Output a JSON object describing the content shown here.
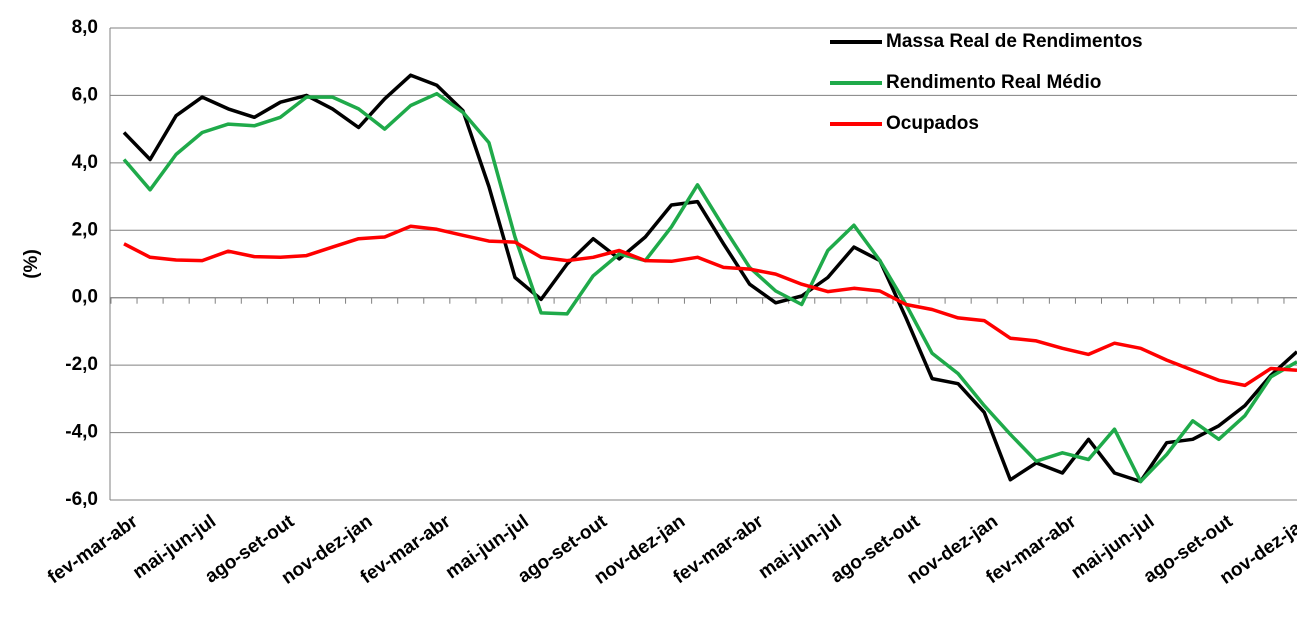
{
  "chart_data": {
    "type": "line",
    "ylabel": "(%)",
    "categories": [
      "fev-mar-abr",
      null,
      null,
      "mai-jun-jul",
      null,
      null,
      "ago-set-out",
      null,
      null,
      "nov-dez-jan",
      null,
      null,
      "fev-mar-abr",
      null,
      null,
      "mai-jun-jul",
      null,
      null,
      "ago-set-out",
      null,
      null,
      "nov-dez-jan",
      null,
      null,
      "fev-mar-abr",
      null,
      null,
      "mai-jun-jul",
      null,
      null,
      "ago-set-out",
      null,
      null,
      "nov-dez-jan",
      null,
      null,
      "fev-mar-abr",
      null,
      null,
      "mai-jun-jul",
      null,
      null,
      "ago-set-out",
      null,
      null,
      "nov-dez-jan"
    ],
    "series": [
      {
        "name": "Massa Real de Rendimentos",
        "color": "#000000",
        "values": [
          4.9,
          4.1,
          5.4,
          5.95,
          5.6,
          5.35,
          5.8,
          6.0,
          5.6,
          5.05,
          5.9,
          6.6,
          6.3,
          5.55,
          3.3,
          0.6,
          -0.05,
          1.0,
          1.75,
          1.15,
          1.8,
          2.75,
          2.85,
          1.6,
          0.4,
          -0.15,
          0.05,
          0.6,
          1.5,
          1.1,
          -0.6,
          -2.4,
          -2.55,
          -3.4,
          -5.4,
          -4.9,
          -5.2,
          -4.2,
          -5.2,
          -5.45,
          -4.3,
          -4.2,
          -3.8,
          -3.2,
          -2.3,
          -1.6
        ]
      },
      {
        "name": "Rendimento Real Médio",
        "color": "#1faa4a",
        "values": [
          4.1,
          3.2,
          4.25,
          4.9,
          5.15,
          5.1,
          5.35,
          5.95,
          5.95,
          5.6,
          5.0,
          5.7,
          6.05,
          5.5,
          4.6,
          1.8,
          -0.45,
          -0.48,
          0.65,
          1.3,
          1.1,
          2.1,
          3.35,
          2.1,
          0.9,
          0.2,
          -0.2,
          1.4,
          2.15,
          1.1,
          -0.2,
          -1.65,
          -2.25,
          -3.2,
          -4.05,
          -4.85,
          -4.6,
          -4.8,
          -3.9,
          -5.45,
          -4.65,
          -3.65,
          -4.2,
          -3.5,
          -2.35,
          -1.9
        ]
      },
      {
        "name": "Ocupados",
        "color": "#ff0000",
        "values": [
          1.6,
          1.2,
          1.12,
          1.1,
          1.38,
          1.22,
          1.2,
          1.25,
          1.5,
          1.75,
          1.8,
          2.12,
          2.03,
          1.85,
          1.68,
          1.65,
          1.2,
          1.1,
          1.2,
          1.4,
          1.1,
          1.08,
          1.2,
          0.9,
          0.85,
          0.7,
          0.4,
          0.18,
          0.28,
          0.2,
          -0.2,
          -0.35,
          -0.6,
          -0.68,
          -1.2,
          -1.28,
          -1.5,
          -1.68,
          -1.35,
          -1.5,
          -1.85,
          -2.15,
          -2.45,
          -2.6,
          -2.1,
          -2.15
        ]
      }
    ],
    "ylim": [
      -6,
      8
    ],
    "yticks": [
      {
        "value": -6,
        "label": "-6,0"
      },
      {
        "value": -4,
        "label": "-4,0"
      },
      {
        "value": -2,
        "label": "-2,0"
      },
      {
        "value": 0,
        "label": "0,0"
      },
      {
        "value": 2,
        "label": "2,0"
      },
      {
        "value": 4,
        "label": "4,0"
      },
      {
        "value": 6,
        "label": "6,0"
      },
      {
        "value": 8,
        "label": "8,0"
      }
    ],
    "grid": true,
    "legend": "upper right"
  }
}
